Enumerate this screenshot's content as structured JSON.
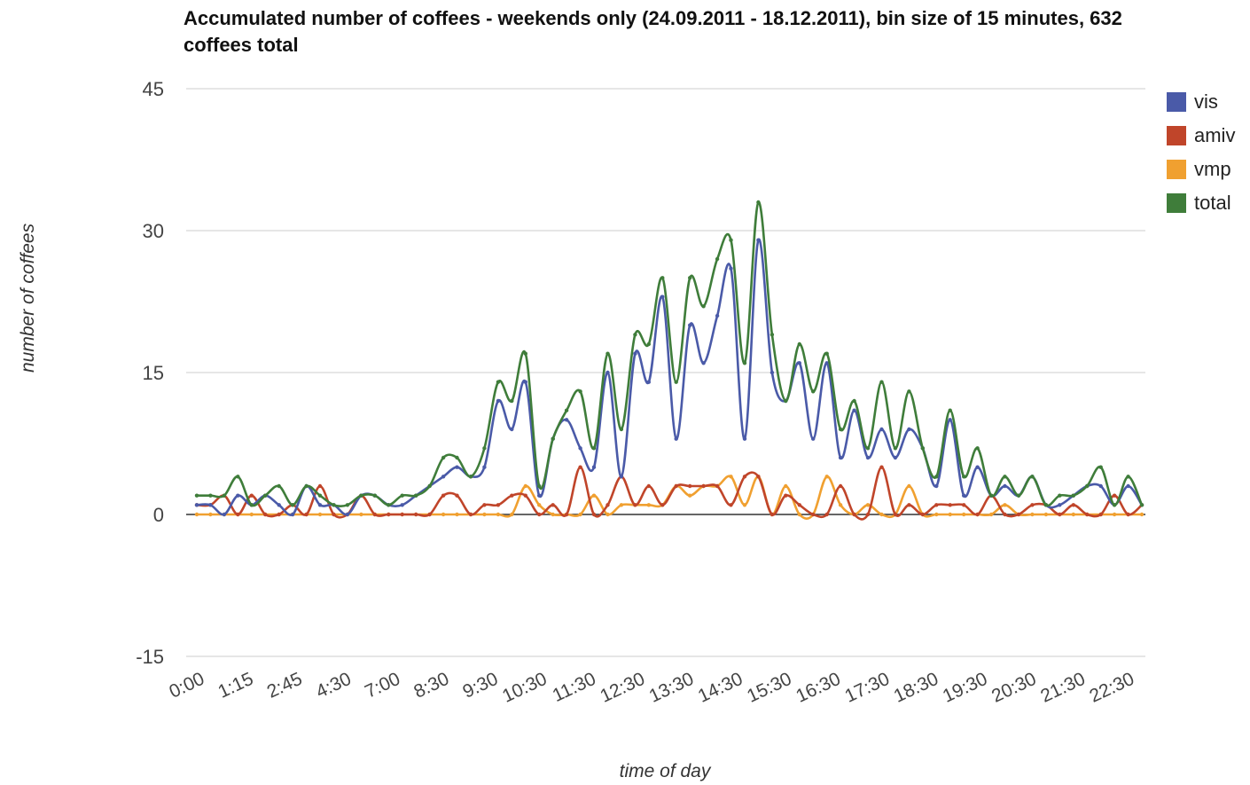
{
  "chart_data": {
    "type": "line",
    "title": "Accumulated number of coffees - weekends only (24.09.2011 - 18.12.2011), bin size of 15 minutes, 632 coffees total",
    "xlabel": "time of day",
    "ylabel": "number of coffees",
    "ylim": [
      -15,
      45
    ],
    "yticks": [
      -15,
      0,
      15,
      30,
      45
    ],
    "xtick_labels": [
      "0:00",
      "1:15",
      "2:45",
      "4:30",
      "7:00",
      "8:30",
      "9:30",
      "10:30",
      "11:30",
      "12:30",
      "13:30",
      "14:30",
      "15:30",
      "16:30",
      "17:30",
      "18:30",
      "19:30",
      "20:30",
      "21:30",
      "22:30"
    ],
    "grid": true,
    "legend_position": "right",
    "series": [
      {
        "name": "vis",
        "color": "#4a5aa8",
        "values": [
          1,
          1,
          0,
          2,
          1,
          2,
          1,
          0,
          3,
          1,
          1,
          0,
          2,
          2,
          1,
          1,
          2,
          3,
          4,
          5,
          4,
          5,
          12,
          9,
          14,
          2,
          8,
          10,
          7,
          5,
          15,
          4,
          17,
          14,
          23,
          8,
          20,
          16,
          21,
          26,
          8,
          29,
          15,
          12,
          16,
          8,
          16,
          6,
          11,
          6,
          9,
          6,
          9,
          7,
          3,
          10,
          2,
          5,
          2,
          3,
          2,
          4,
          1,
          1,
          2,
          3,
          3,
          1,
          3,
          1
        ]
      },
      {
        "name": "amiv",
        "color": "#c0452a",
        "values": [
          1,
          1,
          2,
          0,
          2,
          0,
          0,
          1,
          0,
          3,
          0,
          0,
          2,
          0,
          0,
          0,
          0,
          0,
          2,
          2,
          0,
          1,
          1,
          2,
          2,
          0,
          1,
          0,
          5,
          0,
          1,
          4,
          1,
          3,
          1,
          3,
          3,
          3,
          3,
          1,
          4,
          4,
          0,
          2,
          1,
          0,
          0,
          3,
          0,
          0,
          5,
          0,
          1,
          0,
          1,
          1,
          1,
          0,
          2,
          0,
          0,
          1,
          1,
          0,
          1,
          0,
          0,
          2,
          0,
          1
        ]
      },
      {
        "name": "vmp",
        "color": "#f0a030",
        "values": [
          0,
          0,
          0,
          0,
          0,
          0,
          0,
          0,
          0,
          0,
          0,
          0,
          0,
          0,
          0,
          0,
          0,
          0,
          0,
          0,
          0,
          0,
          0,
          0,
          3,
          1,
          0,
          0,
          0,
          2,
          0,
          1,
          1,
          1,
          1,
          3,
          2,
          3,
          3,
          4,
          1,
          4,
          0,
          3,
          0,
          0,
          4,
          1,
          0,
          1,
          0,
          0,
          3,
          0,
          0,
          0,
          0,
          0,
          0,
          1,
          0,
          0,
          0,
          0,
          0,
          0,
          0,
          0,
          0,
          0
        ]
      },
      {
        "name": "total",
        "color": "#3f7d3a",
        "values": [
          2,
          2,
          2,
          4,
          1,
          2,
          3,
          1,
          3,
          2,
          1,
          1,
          2,
          2,
          1,
          2,
          2,
          3,
          6,
          6,
          4,
          7,
          14,
          12,
          17,
          3,
          8,
          11,
          13,
          7,
          17,
          9,
          19,
          18,
          25,
          14,
          25,
          22,
          27,
          29,
          16,
          33,
          19,
          12,
          18,
          13,
          17,
          9,
          12,
          7,
          14,
          7,
          13,
          7,
          4,
          11,
          4,
          7,
          2,
          4,
          2,
          4,
          1,
          2,
          2,
          3,
          5,
          1,
          4,
          1
        ]
      }
    ]
  }
}
